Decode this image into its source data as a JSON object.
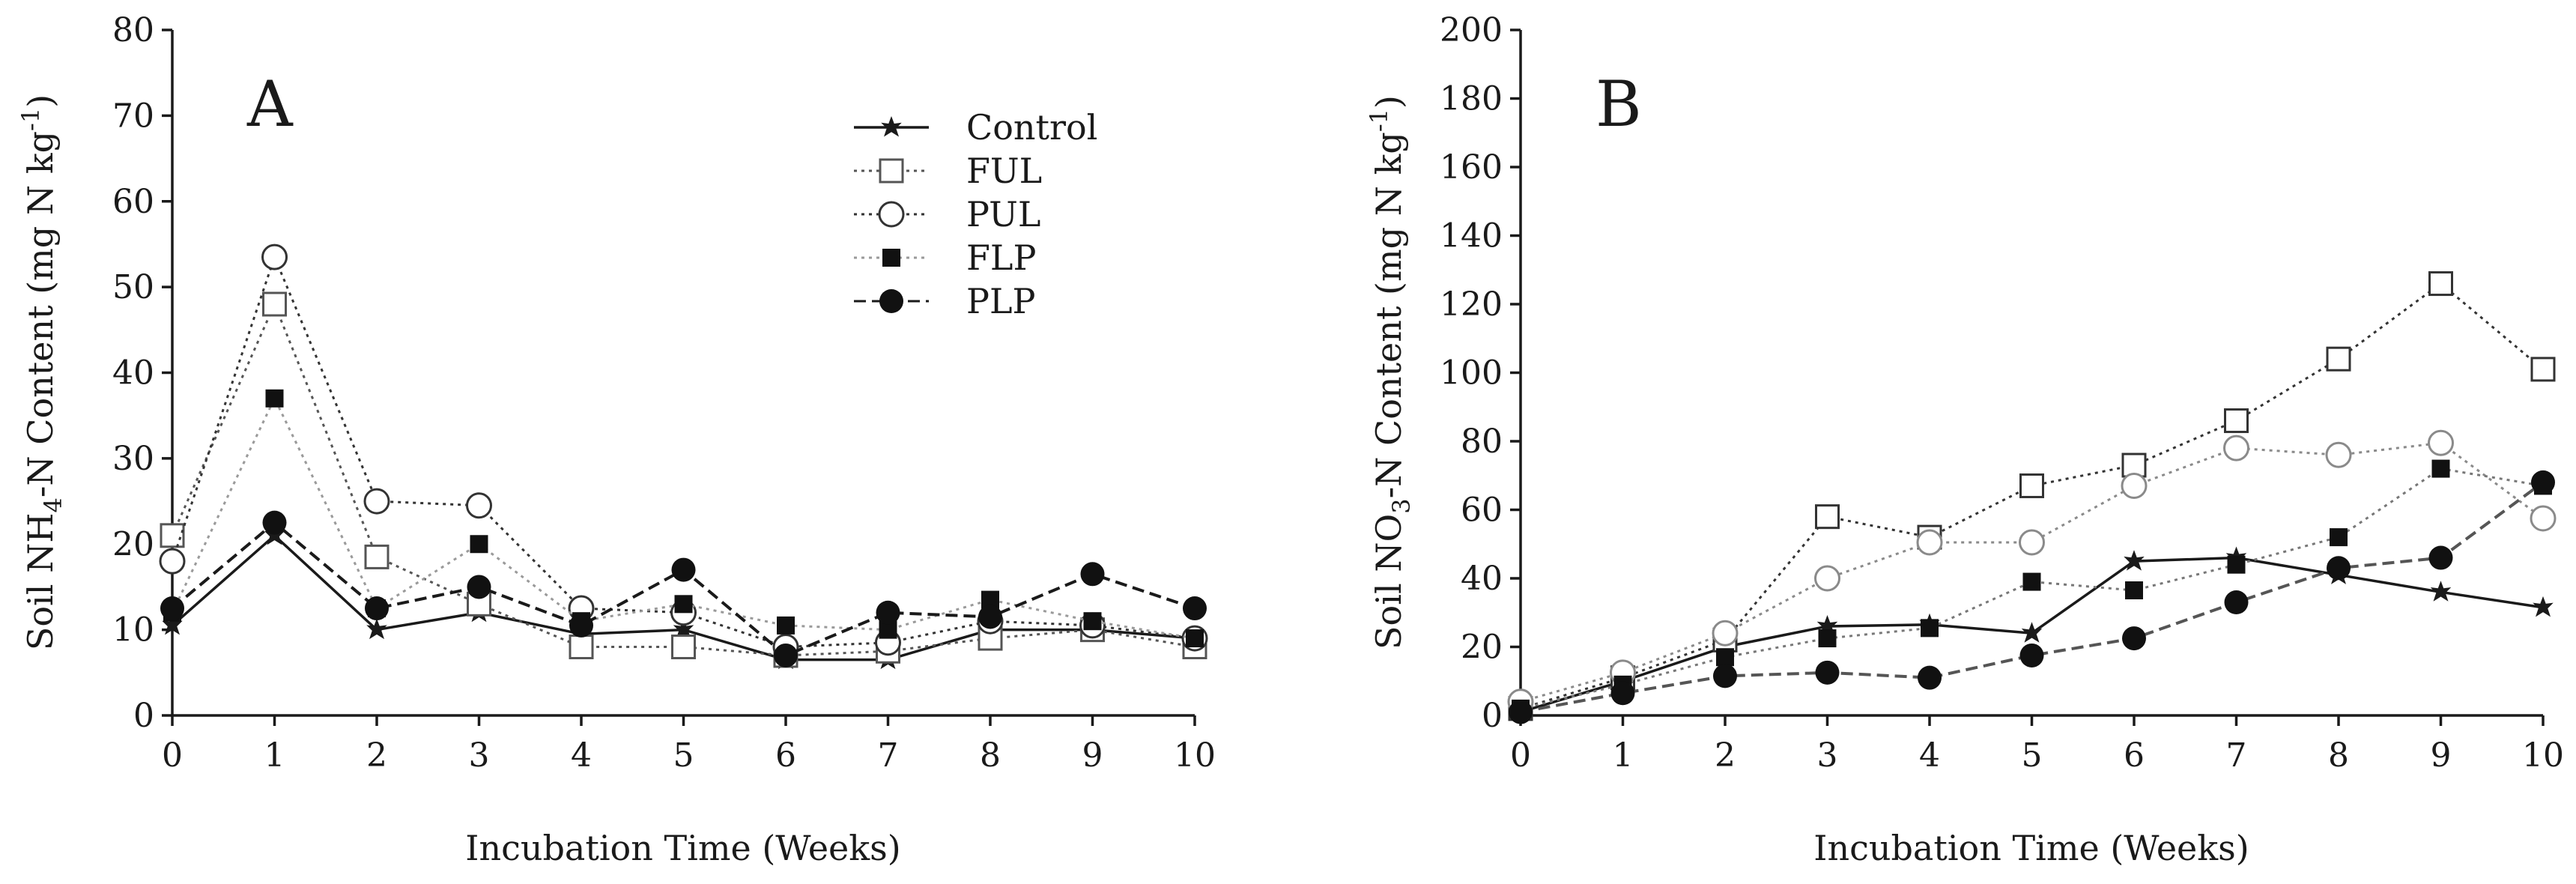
{
  "chart_data": [
    {
      "type": "line",
      "panel_label": "A",
      "xlabel": "Incubation Time (Weeks)",
      "ylabel": "Soil NH4-N Content (mg N kg-1)",
      "ylabel_parts": {
        "pre": "Soil NH",
        "sub": "4",
        "mid": "-N Content (mg N kg",
        "sup": "-1",
        "post": ")"
      },
      "xlim": [
        0,
        10
      ],
      "ylim": [
        0,
        80
      ],
      "x_ticks": [
        "0",
        "1",
        "2",
        "3",
        "4",
        "5",
        "6",
        "7",
        "8",
        "9",
        "10"
      ],
      "y_ticks": [
        "0",
        "10",
        "20",
        "30",
        "40",
        "50",
        "60",
        "70",
        "80"
      ],
      "x": [
        0,
        1,
        2,
        3,
        4,
        5,
        6,
        7,
        8,
        9,
        10
      ],
      "legend_position": "top-right",
      "series": [
        {
          "name": "Control",
          "marker": "star",
          "line": "solid",
          "color": "#1a1a1a",
          "values": [
            10.5,
            21,
            10,
            12,
            9.5,
            10,
            6.5,
            6.5,
            10,
            10,
            9
          ]
        },
        {
          "name": "FUL",
          "marker": "square-open",
          "line": "dotted",
          "color": "#555555",
          "values": [
            21,
            48,
            18.5,
            13,
            8,
            8,
            7,
            7.5,
            9,
            10,
            8
          ]
        },
        {
          "name": "PUL",
          "marker": "circle-open",
          "line": "dotted",
          "color": "#333333",
          "values": [
            18,
            53.5,
            25,
            24.5,
            12.5,
            12,
            8,
            8.5,
            11,
            10.5,
            9
          ]
        },
        {
          "name": "FLP",
          "marker": "square-filled",
          "line": "dotted",
          "color": "#9a9a9a",
          "values": [
            12,
            37,
            12.5,
            20,
            11,
            13,
            10.5,
            10,
            13.5,
            11,
            9
          ]
        },
        {
          "name": "PLP",
          "marker": "circle-filled",
          "line": "dashed",
          "color": "#1a1a1a",
          "values": [
            12.5,
            22.5,
            12.5,
            15,
            10.5,
            17,
            7,
            12,
            11.5,
            16.5,
            12.5
          ]
        }
      ]
    },
    {
      "type": "line",
      "panel_label": "B",
      "xlabel": "Incubation Time (Weeks)",
      "ylabel": "Soil NO3-N Content (mg N kg-1)",
      "ylabel_parts": {
        "pre": "Soil NO",
        "sub": "3",
        "mid": "-N Content (mg N kg",
        "sup": "-1",
        "post": ")"
      },
      "xlim": [
        0,
        10
      ],
      "ylim": [
        0,
        200
      ],
      "x_ticks": [
        "0",
        "1",
        "2",
        "3",
        "4",
        "5",
        "6",
        "7",
        "8",
        "9",
        "10"
      ],
      "y_ticks": [
        "0",
        "20",
        "40",
        "60",
        "80",
        "100",
        "120",
        "140",
        "160",
        "180",
        "200"
      ],
      "x": [
        0,
        1,
        2,
        3,
        4,
        5,
        6,
        7,
        8,
        9,
        10
      ],
      "series": [
        {
          "name": "Control",
          "marker": "star",
          "line": "solid",
          "color": "#1a1a1a",
          "values": [
            1,
            10,
            20,
            26,
            26.5,
            24,
            45,
            46,
            41,
            36,
            31.5
          ]
        },
        {
          "name": "FUL",
          "marker": "square-open",
          "line": "dotted",
          "color": "#333333",
          "values": [
            2,
            11,
            22,
            58,
            52,
            67,
            73,
            86,
            104,
            126,
            101
          ]
        },
        {
          "name": "PUL",
          "marker": "circle-open",
          "line": "dotted",
          "color": "#8a8a8a",
          "values": [
            4,
            12.5,
            24,
            40,
            50.5,
            50.5,
            67,
            78,
            76,
            79.5,
            57.5
          ]
        },
        {
          "name": "FLP",
          "marker": "square-filled",
          "line": "dotted",
          "color": "#777777",
          "values": [
            2,
            9,
            17,
            22.5,
            25.5,
            39,
            36.5,
            44,
            52,
            72,
            67
          ]
        },
        {
          "name": "PLP",
          "marker": "circle-filled",
          "line": "dashed",
          "color": "#555555",
          "values": [
            1,
            6.5,
            11.5,
            12.5,
            11,
            17.5,
            22.5,
            33,
            43,
            46,
            68
          ]
        }
      ]
    }
  ]
}
